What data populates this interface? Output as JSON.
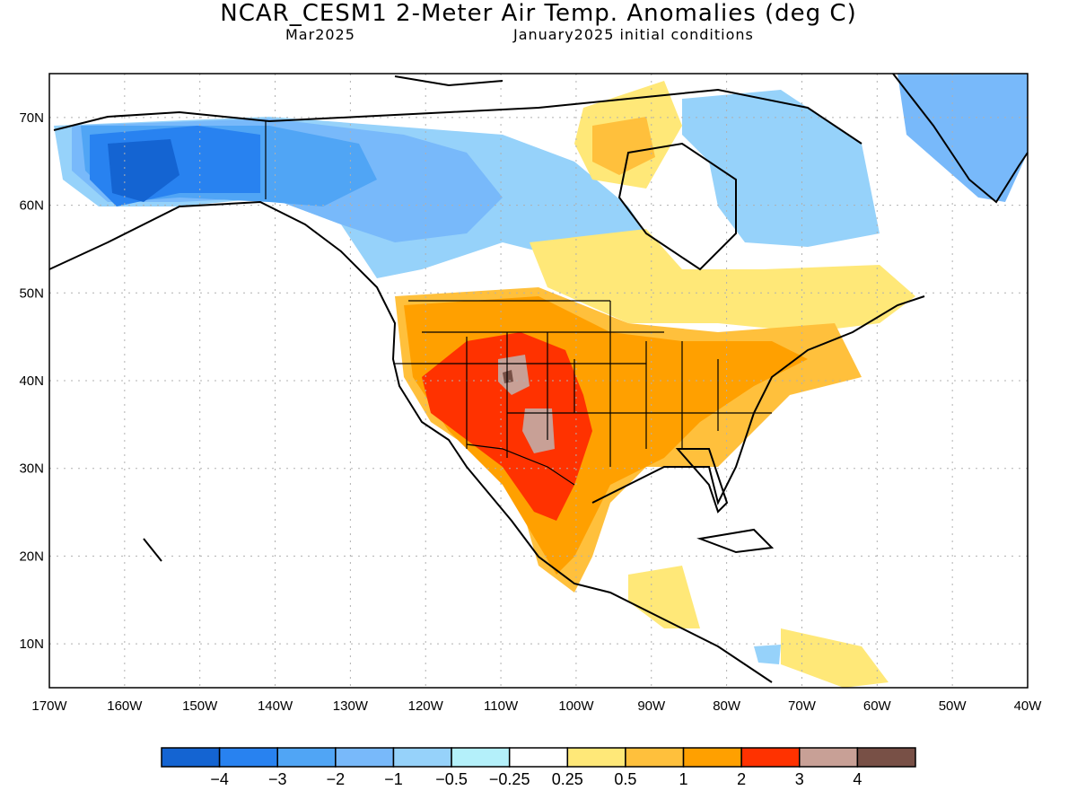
{
  "header": {
    "title": "NCAR_CESM1 2-Meter Air Temp. Anomalies (deg C)",
    "forecast_month": "Mar2025",
    "init_conditions": "January2025 initial conditions"
  },
  "axes": {
    "lat_labels": [
      "10N",
      "20N",
      "30N",
      "40N",
      "50N",
      "60N",
      "70N"
    ],
    "lat_values": [
      10,
      20,
      30,
      40,
      50,
      60,
      70
    ],
    "lon_labels": [
      "170W",
      "160W",
      "150W",
      "140W",
      "130W",
      "120W",
      "110W",
      "100W",
      "90W",
      "80W",
      "70W",
      "60W",
      "50W",
      "40W"
    ],
    "lon_values": [
      -170,
      -160,
      -150,
      -140,
      -130,
      -120,
      -110,
      -100,
      -90,
      -80,
      -70,
      -60,
      -50,
      -40
    ],
    "lon_range": [
      -170,
      -40
    ],
    "lat_range": [
      5,
      75
    ]
  },
  "legend": {
    "tick_labels": [
      "−4",
      "−3",
      "−2",
      "−1",
      "−0.5",
      "−0.25",
      "0.25",
      "0.5",
      "1",
      "2",
      "3",
      "4"
    ],
    "colors": [
      "#1464d2",
      "#2882f0",
      "#50a5f5",
      "#78b9fa",
      "#96d2fa",
      "#b4f0fa",
      "#ffffff",
      "#ffe878",
      "#ffc03c",
      "#ffa000",
      "#ff3200",
      "#c8a096",
      "#785046"
    ]
  },
  "regions": [
    {
      "name": "alaska-cold",
      "color": "#2882f0"
    },
    {
      "name": "canada-west-cold",
      "color": "#50a5f5"
    },
    {
      "name": "canada-mid-cool",
      "color": "#78b9fa"
    },
    {
      "name": "hudson-cool",
      "color": "#96d2fa"
    },
    {
      "name": "greenland-cool",
      "color": "#78b9fa"
    },
    {
      "name": "us-warm",
      "color": "#ffa000"
    },
    {
      "name": "southwest-hot",
      "color": "#ff3200"
    },
    {
      "name": "four-corners-hottest",
      "color": "#c8a096"
    }
  ]
}
